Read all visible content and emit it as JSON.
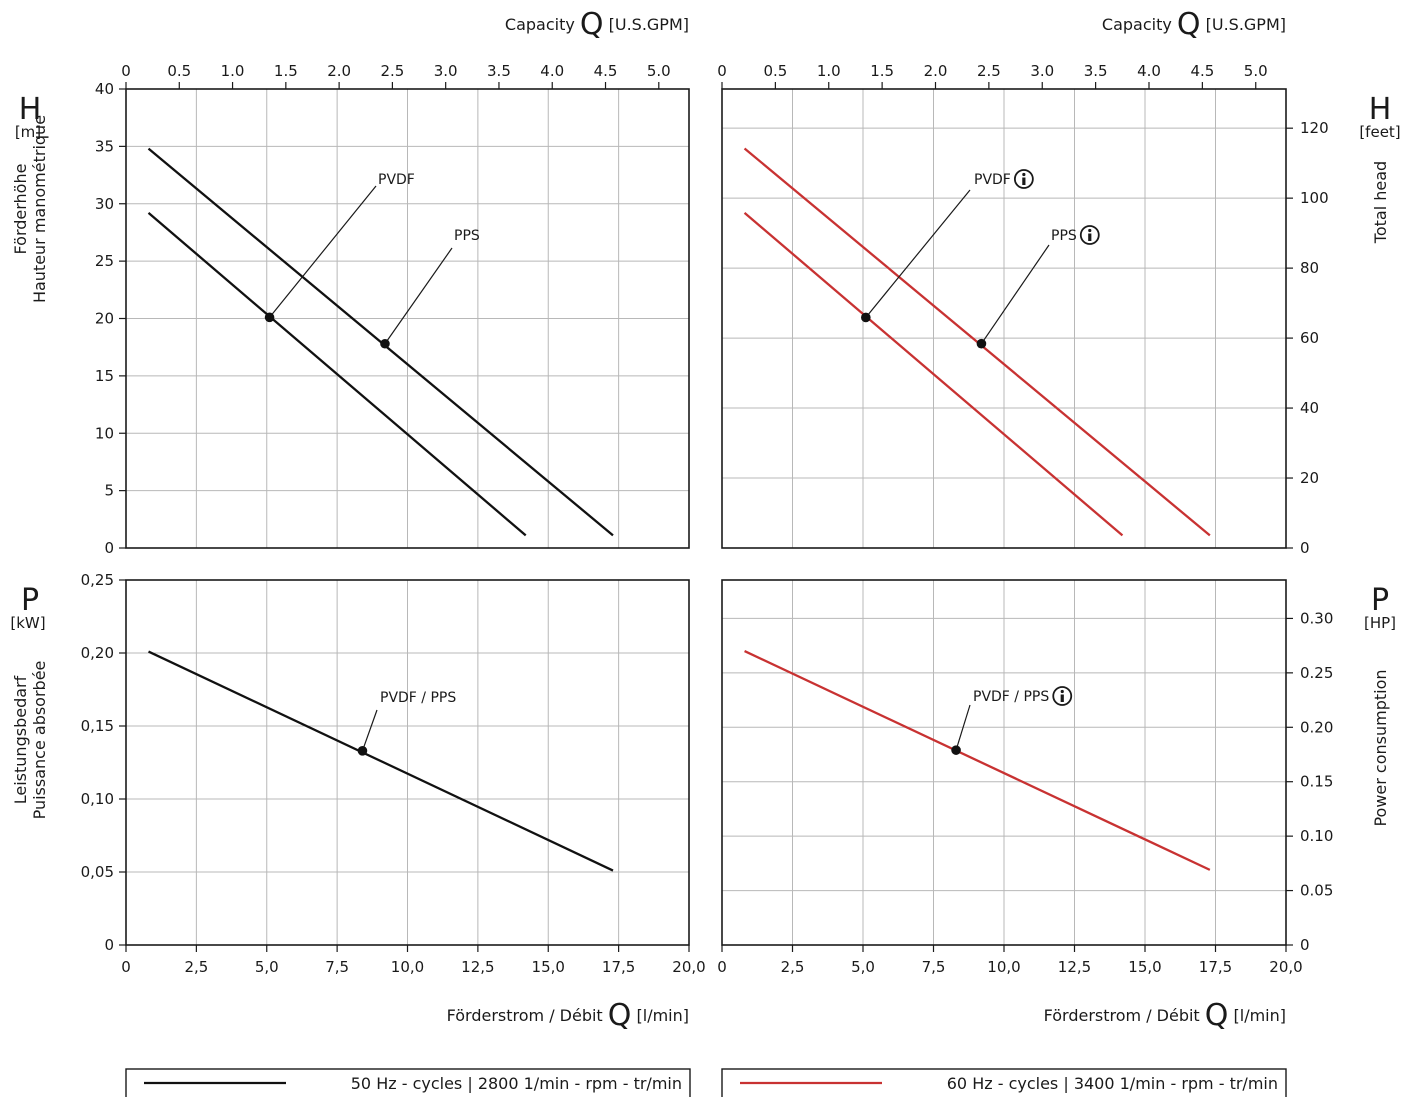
{
  "chart_data": [
    {
      "id": "head-50hz",
      "type": "line",
      "x_label_top_name": "Capacity",
      "x_label_top_symbol": "Q",
      "x_label_top_unit": "[U.S.GPM]",
      "x_top_ticks": [
        "0",
        "0.5",
        "1.0",
        "1.5",
        "2.0",
        "2.5",
        "3.0",
        "3.5",
        "4.0",
        "4.5",
        "5.0"
      ],
      "y_symbol": "H",
      "y_unit": "[m]",
      "y_label_lines": [
        "Förderhöhe",
        "Hauteur manométrique"
      ],
      "y_ticks": [
        "0",
        "5",
        "10",
        "15",
        "20",
        "25",
        "30",
        "35",
        "40"
      ],
      "xlim": [
        0,
        20
      ],
      "ylim": [
        0,
        40
      ],
      "color": "#111111",
      "series": [
        {
          "name": "PPS",
          "x": [
            0.8,
            17.3
          ],
          "y": [
            34.8,
            1.1
          ]
        },
        {
          "name": "PVDF",
          "x": [
            0.8,
            14.2
          ],
          "y": [
            29.2,
            1.1
          ]
        }
      ],
      "annotations": [
        {
          "text": "PVDF",
          "x": 5.1,
          "y": 20.1,
          "info": false
        },
        {
          "text": "PPS",
          "x": 9.2,
          "y": 17.8,
          "info": false
        }
      ]
    },
    {
      "id": "head-60hz",
      "type": "line",
      "x_label_top_name": "Capacity",
      "x_label_top_symbol": "Q",
      "x_label_top_unit": "[U.S.GPM]",
      "x_top_ticks": [
        "0",
        "0.5",
        "1.0",
        "1.5",
        "2.0",
        "2.5",
        "3.0",
        "3.5",
        "4.0",
        "4.5",
        "5.0"
      ],
      "y_symbol": "H",
      "y_unit": "[feet]",
      "y_label_lines": [
        "Total head"
      ],
      "y_ticks": [
        "0",
        "20",
        "40",
        "60",
        "80",
        "100",
        "120"
      ],
      "y_tick_values": [
        0,
        20,
        40,
        60,
        80,
        100,
        120
      ],
      "xlim": [
        0,
        20
      ],
      "ylim": [
        0,
        131.2
      ],
      "color": "#c83232",
      "series": [
        {
          "name": "PPS",
          "x": [
            0.8,
            17.3
          ],
          "y": [
            114.2,
            3.6
          ]
        },
        {
          "name": "PVDF",
          "x": [
            0.8,
            14.2
          ],
          "y": [
            95.8,
            3.6
          ]
        }
      ],
      "annotations": [
        {
          "text": "PVDF",
          "x": 5.1,
          "y": 65.9,
          "info": true
        },
        {
          "text": "PPS",
          "x": 9.2,
          "y": 58.4,
          "info": true
        }
      ]
    },
    {
      "id": "power-50hz",
      "type": "line",
      "x_label_name": "Förderstrom / Débit",
      "x_label_symbol": "Q",
      "x_label_unit": "[l/min]",
      "x_bottom_ticks": [
        "0",
        "2,5",
        "5,0",
        "7,5",
        "10,0",
        "12,5",
        "15,0",
        "17,5",
        "20,0"
      ],
      "y_symbol": "P",
      "y_unit": "[kW]",
      "y_label_lines": [
        "Leistungsbedarf",
        "Puissance absorbée"
      ],
      "y_ticks": [
        "0",
        "0,05",
        "0,10",
        "0,15",
        "0,20",
        "0,25"
      ],
      "xlim": [
        0,
        20
      ],
      "ylim": [
        0,
        0.25
      ],
      "color": "#111111",
      "series": [
        {
          "name": "PVDF / PPS",
          "x": [
            0.8,
            17.3
          ],
          "y": [
            0.201,
            0.051
          ]
        }
      ],
      "annotations": [
        {
          "text": "PVDF / PPS",
          "x": 8.4,
          "y": 0.133,
          "info": false
        }
      ]
    },
    {
      "id": "power-60hz",
      "type": "line",
      "x_label_name": "Förderstrom / Débit",
      "x_label_symbol": "Q",
      "x_label_unit": "[l/min]",
      "x_bottom_ticks": [
        "0",
        "2,5",
        "5,0",
        "7,5",
        "10,0",
        "12,5",
        "15,0",
        "17,5",
        "20,0"
      ],
      "y_symbol": "P",
      "y_unit": "[HP]",
      "y_label_lines": [
        "Power consumption"
      ],
      "y_ticks": [
        "0",
        "0.05",
        "0.10",
        "0.15",
        "0.20",
        "0.25",
        "0.30"
      ],
      "y_tick_values": [
        0,
        0.05,
        0.1,
        0.15,
        0.2,
        0.25,
        0.3
      ],
      "xlim": [
        0,
        20
      ],
      "ylim": [
        0,
        0.3353
      ],
      "color": "#c83232",
      "series": [
        {
          "name": "PVDF / PPS",
          "x": [
            0.8,
            17.3
          ],
          "y": [
            0.27,
            0.069
          ]
        }
      ],
      "annotations": [
        {
          "text": "PVDF / PPS",
          "x": 8.3,
          "y": 0.179,
          "info": true
        }
      ]
    }
  ],
  "legend": [
    {
      "label": "50 Hz - cycles | 2800 1/min - rpm - tr/min",
      "color": "#111111"
    },
    {
      "label": "60 Hz - cycles | 3400 1/min - rpm - tr/min",
      "color": "#c83232"
    }
  ],
  "info_glyph": "info-icon"
}
